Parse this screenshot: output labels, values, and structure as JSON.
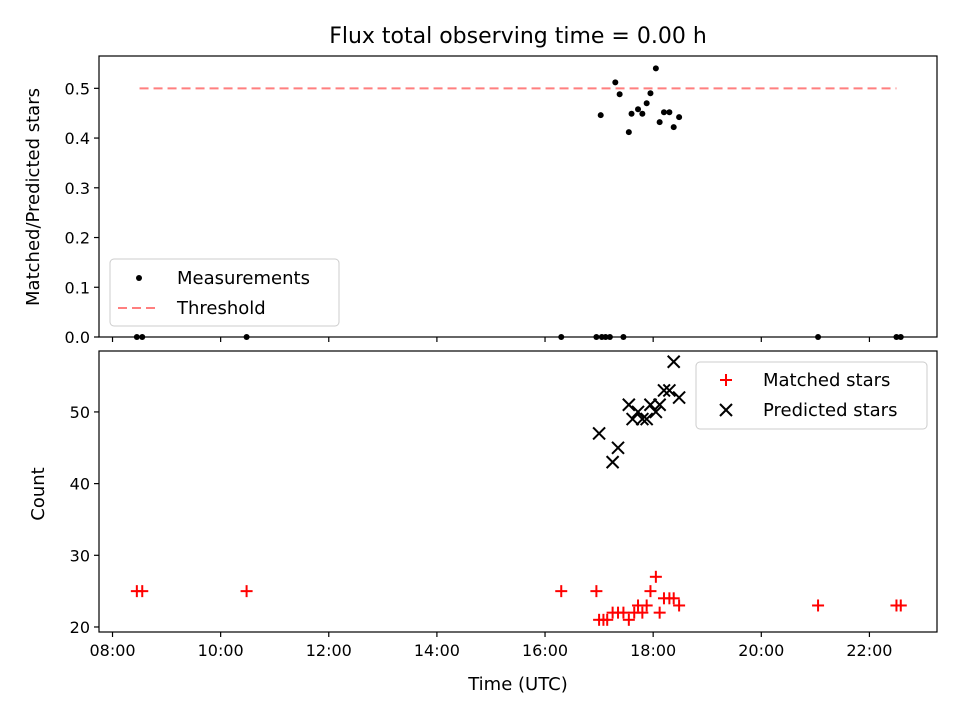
{
  "chart_data": [
    {
      "type": "scatter",
      "title": "Flux total observing time = 0.00 h",
      "ylabel": "Matched/Predicted stars",
      "xlabel": "",
      "x_unit": "hours UTC",
      "xlim": [
        7.75,
        23.25
      ],
      "ylim": [
        0,
        0.565
      ],
      "yticks": [
        0.0,
        0.1,
        0.2,
        0.3,
        0.4,
        0.5
      ],
      "ytick_labels": [
        "0.0",
        "0.1",
        "0.2",
        "0.3",
        "0.4",
        "0.5"
      ],
      "grid": false,
      "legend_position": "lower-left",
      "threshold": {
        "name": "Threshold",
        "y": 0.5,
        "x_range": [
          8.5,
          22.5
        ],
        "color": "#ff7f7f"
      },
      "series": [
        {
          "name": "Measurements",
          "marker": "dot",
          "color": "#000000",
          "x": [
            8.45,
            8.55,
            10.48,
            16.3,
            16.95,
            17.05,
            17.12,
            17.2,
            17.45,
            17.03,
            17.3,
            17.38,
            17.55,
            17.6,
            17.72,
            17.8,
            17.88,
            17.95,
            18.05,
            18.12,
            18.2,
            18.3,
            18.38,
            18.48,
            21.05,
            22.5,
            22.58
          ],
          "y": [
            0,
            0,
            0,
            0,
            0,
            0,
            0,
            0,
            0,
            0.446,
            0.512,
            0.488,
            0.412,
            0.449,
            0.458,
            0.449,
            0.47,
            0.49,
            0.54,
            0.432,
            0.452,
            0.452,
            0.422,
            0.442,
            0,
            0,
            0
          ]
        }
      ]
    },
    {
      "type": "scatter",
      "title": "",
      "xlabel": "Time (UTC)",
      "ylabel": "Count",
      "x_unit": "hours UTC",
      "xlim": [
        7.75,
        23.25
      ],
      "ylim": [
        19.3,
        58.5
      ],
      "xticks": [
        8,
        10,
        12,
        14,
        16,
        18,
        20,
        22
      ],
      "xtick_labels": [
        "08:00",
        "10:00",
        "12:00",
        "14:00",
        "16:00",
        "18:00",
        "20:00",
        "22:00"
      ],
      "yticks": [
        20,
        30,
        40,
        50
      ],
      "ytick_labels": [
        "20",
        "30",
        "40",
        "50"
      ],
      "grid": false,
      "legend_position": "top-right",
      "series": [
        {
          "name": "Matched stars",
          "marker": "plus",
          "color": "#ff0000",
          "x": [
            8.45,
            8.55,
            10.48,
            16.3,
            16.95,
            17.0,
            17.08,
            17.15,
            17.25,
            17.35,
            17.45,
            17.55,
            17.65,
            17.72,
            17.8,
            17.88,
            17.95,
            18.05,
            18.12,
            18.2,
            18.3,
            18.38,
            18.48,
            21.05,
            22.5,
            22.58
          ],
          "y": [
            25,
            25,
            25,
            25,
            25,
            21,
            21,
            21,
            22,
            22,
            22,
            21,
            22,
            23,
            22,
            23,
            25,
            27,
            22,
            24,
            24,
            24,
            23,
            23,
            23,
            23
          ]
        },
        {
          "name": "Predicted stars",
          "marker": "x",
          "color": "#000000",
          "x": [
            17.0,
            17.25,
            17.35,
            17.55,
            17.62,
            17.72,
            17.8,
            17.88,
            17.95,
            18.05,
            18.12,
            18.2,
            18.3,
            18.38,
            18.48
          ],
          "y": [
            47,
            43,
            45,
            51,
            49,
            50,
            49,
            49,
            51,
            50,
            51,
            53,
            53,
            57,
            52
          ]
        }
      ]
    }
  ]
}
